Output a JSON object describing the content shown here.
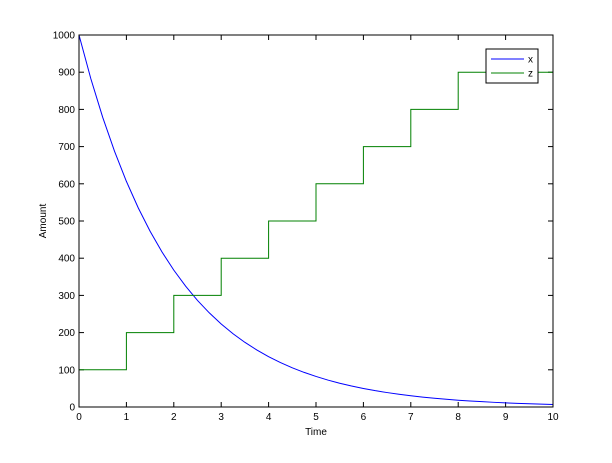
{
  "chart_data": {
    "type": "line",
    "title": "",
    "xlabel": "Time",
    "ylabel": "Amount",
    "xlim": [
      0,
      10
    ],
    "ylim": [
      0,
      1000
    ],
    "xticks": [
      0,
      1,
      2,
      3,
      4,
      5,
      6,
      7,
      8,
      9,
      10
    ],
    "yticks": [
      0,
      100,
      200,
      300,
      400,
      500,
      600,
      700,
      800,
      900,
      1000
    ],
    "grid": false,
    "legend_placement": "top-right",
    "series": [
      {
        "name": "x",
        "color": "#0000ff",
        "style": "line",
        "x": [
          0,
          0.25,
          0.5,
          0.75,
          1,
          1.25,
          1.5,
          1.75,
          2,
          2.25,
          2.5,
          2.75,
          3,
          3.25,
          3.5,
          3.75,
          4,
          4.25,
          4.5,
          4.75,
          5,
          5.25,
          5.5,
          5.75,
          6,
          6.25,
          6.5,
          6.75,
          7,
          7.25,
          7.5,
          7.75,
          8,
          8.25,
          8.5,
          8.75,
          9,
          9.25,
          9.5,
          9.75,
          10
        ],
        "y": [
          1000,
          882.5,
          778.8,
          687.3,
          606.5,
          535.3,
          472.4,
          416.9,
          367.9,
          324.7,
          286.5,
          252.9,
          223.1,
          196.9,
          173.8,
          153.4,
          135.3,
          119.4,
          105.4,
          93.0,
          82.1,
          72.4,
          63.9,
          56.4,
          49.8,
          43.9,
          38.8,
          34.2,
          30.2,
          26.6,
          23.5,
          20.8,
          18.3,
          16.2,
          14.3,
          12.6,
          11.1,
          9.8,
          8.7,
          7.6,
          6.7
        ]
      },
      {
        "name": "z",
        "color": "#008000",
        "style": "step",
        "x": [
          0,
          1,
          2,
          3,
          4,
          5,
          6,
          7,
          8,
          10
        ],
        "y": [
          100,
          200,
          300,
          400,
          500,
          600,
          700,
          800,
          900,
          900
        ]
      }
    ]
  }
}
